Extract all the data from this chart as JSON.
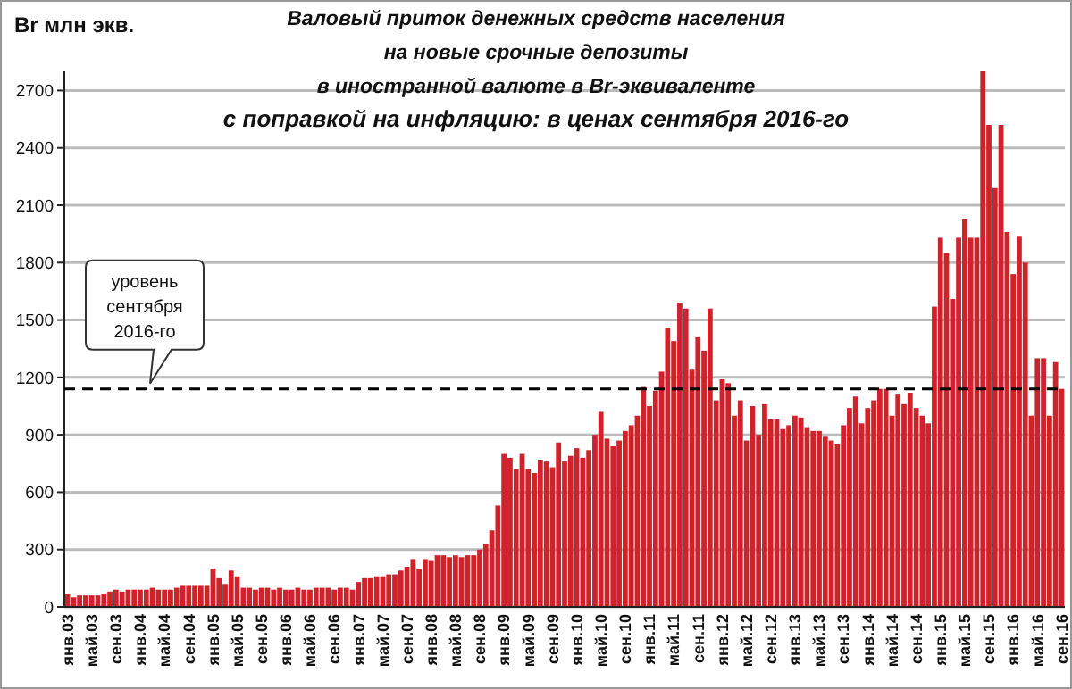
{
  "chart_data": {
    "type": "bar",
    "title": "Валовый  приток денежных средств населения\nна новые срочные депозиты\nв иностранной валюте в Br-эквиваленте\nс поправкой на инфляцию: в ценах сентября 2016-го",
    "ylabel": "Br млн экв.",
    "categories": [
      "янв.03",
      null,
      null,
      null,
      "май.03",
      null,
      null,
      null,
      "сен.03",
      null,
      null,
      null,
      "янв.04",
      null,
      null,
      null,
      "май.04",
      null,
      null,
      null,
      "сен.04",
      null,
      null,
      null,
      "янв.05",
      null,
      null,
      null,
      "май.05",
      null,
      null,
      null,
      "сен.05",
      null,
      null,
      null,
      "янв.06",
      null,
      null,
      null,
      "май.06",
      null,
      null,
      null,
      "сен.06",
      null,
      null,
      null,
      "янв.07",
      null,
      null,
      null,
      "май.07",
      null,
      null,
      null,
      "сен.07",
      null,
      null,
      null,
      "янв.08",
      null,
      null,
      null,
      "май.08",
      null,
      null,
      null,
      "сен.08",
      null,
      null,
      null,
      "янв.09",
      null,
      null,
      null,
      "май.09",
      null,
      null,
      null,
      "сен.09",
      null,
      null,
      null,
      "янв.10",
      null,
      null,
      null,
      "май.10",
      null,
      null,
      null,
      "сен.10",
      null,
      null,
      null,
      "янв.11",
      null,
      null,
      null,
      "май.11",
      null,
      null,
      null,
      "сен.11",
      null,
      null,
      null,
      "янв.12",
      null,
      null,
      null,
      "май.12",
      null,
      null,
      null,
      "сен.12",
      null,
      null,
      null,
      "янв.13",
      null,
      null,
      null,
      "май.13",
      null,
      null,
      null,
      "сен.13",
      null,
      null,
      null,
      "янв.14",
      null,
      null,
      null,
      "май.14",
      null,
      null,
      null,
      "сен.14",
      null,
      null,
      null,
      "янв.15",
      null,
      null,
      null,
      "май.15",
      null,
      null,
      null,
      "сен.15",
      null,
      null,
      null,
      "янв.16",
      null,
      null,
      null,
      "май.16",
      null,
      null,
      null,
      "сен.16"
    ],
    "series": [
      {
        "color": "#d0222a",
        "values": [
          70,
          50,
          60,
          60,
          60,
          60,
          70,
          80,
          90,
          80,
          90,
          90,
          90,
          90,
          100,
          90,
          90,
          90,
          100,
          110,
          110,
          110,
          110,
          110,
          200,
          150,
          120,
          190,
          160,
          100,
          100,
          90,
          100,
          100,
          90,
          100,
          90,
          90,
          100,
          90,
          90,
          100,
          100,
          100,
          90,
          100,
          100,
          90,
          130,
          150,
          150,
          160,
          160,
          170,
          170,
          190,
          210,
          250,
          200,
          250,
          240,
          270,
          270,
          260,
          270,
          260,
          270,
          270,
          300,
          330,
          400,
          530,
          800,
          780,
          720,
          800,
          720,
          700,
          770,
          760,
          730,
          860,
          760,
          790,
          830,
          780,
          820,
          900,
          1020,
          880,
          840,
          870,
          920,
          950,
          1000,
          1150,
          1050,
          1130,
          1230,
          1460,
          1390,
          1590,
          1560,
          1240,
          1410,
          1340,
          1560,
          1080,
          1190,
          1170,
          1000,
          1080,
          870,
          1050,
          900,
          1060,
          980,
          980,
          930,
          950,
          1000,
          990,
          940,
          920,
          920,
          890,
          870,
          850,
          950,
          1040,
          1100,
          960,
          1040,
          1080,
          1140,
          1140,
          1000,
          1110,
          1060,
          1120,
          1040,
          1000,
          960,
          1570,
          1930,
          1850,
          1610,
          1930,
          2030,
          1930,
          1930,
          2800,
          2520,
          2190,
          2520,
          1960,
          1740,
          1940,
          1800,
          1000,
          1300,
          1300,
          1000,
          1280,
          1140
        ]
      }
    ],
    "ylim": [
      0,
      2800
    ],
    "yticks": [
      0,
      300,
      600,
      900,
      1200,
      1500,
      1800,
      2100,
      2400,
      2700
    ],
    "grid": "y",
    "ref_lines": [
      {
        "axis": "y",
        "value": 1140,
        "label": "уровень\nсентября\n2016-го",
        "line_style": "dashed",
        "color": "#000000"
      }
    ]
  }
}
